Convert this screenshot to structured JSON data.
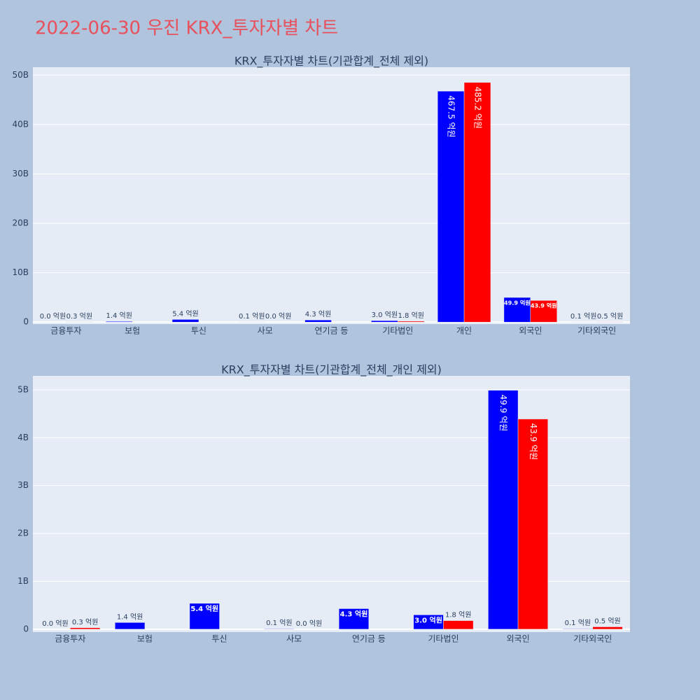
{
  "title": "2022-06-30 우진 KRX_투자자별 차트",
  "chart_data": [
    {
      "type": "bar",
      "title": "KRX_투자자별 차트(기관합계_전체 제외)",
      "categories": [
        "금융투자",
        "보험",
        "투신",
        "사모",
        "연기금 등",
        "기타법인",
        "개인",
        "외국인",
        "기타외국인"
      ],
      "series": [
        {
          "color": "#0000ff",
          "values": [
            0,
            140000000,
            540000000,
            10000000,
            430000000,
            300000000,
            46750000000,
            4990000000,
            10000000
          ],
          "value_labels": [
            "0.0 억원",
            "1.4 억원",
            "5.4 억원",
            "0.1 억원",
            "4.3 억원",
            "3.0 억원",
            "467.5 억원",
            "49.9 억원",
            "0.1 억원"
          ]
        },
        {
          "color": "#ff0000",
          "values": [
            30000000,
            null,
            null,
            0,
            null,
            180000000,
            48520000000,
            4390000000,
            50000000
          ],
          "value_labels": [
            "0.3 억원",
            null,
            null,
            "0.0 억원",
            null,
            "1.8 억원",
            "485.2 억원",
            "43.9 억원",
            "0.5 억원"
          ]
        }
      ],
      "ylim": [
        -400000000,
        51600000000
      ],
      "yticks": [
        0,
        {
          "value": 10000000000,
          "label": "10B"
        },
        {
          "value": 20000000000,
          "label": "20B"
        },
        {
          "value": 30000000000,
          "label": "30B"
        },
        {
          "value": 40000000000,
          "label": "40B"
        },
        {
          "value": 50000000000,
          "label": "50B"
        }
      ],
      "grid": true
    },
    {
      "type": "bar",
      "title": "KRX_투자자별 차트(기관합계_전체_개인 제외)",
      "categories": [
        "금융투자",
        "보험",
        "투신",
        "사모",
        "연기금 등",
        "기타법인",
        "외국인",
        "기타외국인"
      ],
      "series": [
        {
          "color": "#0000ff",
          "values": [
            0,
            140000000,
            540000000,
            10000000,
            430000000,
            300000000,
            4990000000,
            10000000
          ],
          "value_labels": [
            "0.0 억원",
            "1.4 억원",
            "5.4 억원",
            "0.1 억원",
            "4.3 억원",
            "3.0 억원",
            "49.9 억원",
            "0.1 억원"
          ]
        },
        {
          "color": "#ff0000",
          "values": [
            30000000,
            null,
            null,
            0,
            null,
            180000000,
            4390000000,
            50000000
          ],
          "value_labels": [
            "0.3 억원",
            null,
            null,
            "0.0 억원",
            null,
            "1.8 억원",
            "43.9 억원",
            "0.5 억원"
          ]
        }
      ],
      "ylim": [
        -60000000,
        5290000000
      ],
      "yticks": [
        0,
        {
          "value": 1000000000,
          "label": "1B"
        },
        {
          "value": 2000000000,
          "label": "2B"
        },
        {
          "value": 3000000000,
          "label": "3B"
        },
        {
          "value": 4000000000,
          "label": "4B"
        },
        {
          "value": 5000000000,
          "label": "5B"
        }
      ],
      "grid": true
    }
  ]
}
